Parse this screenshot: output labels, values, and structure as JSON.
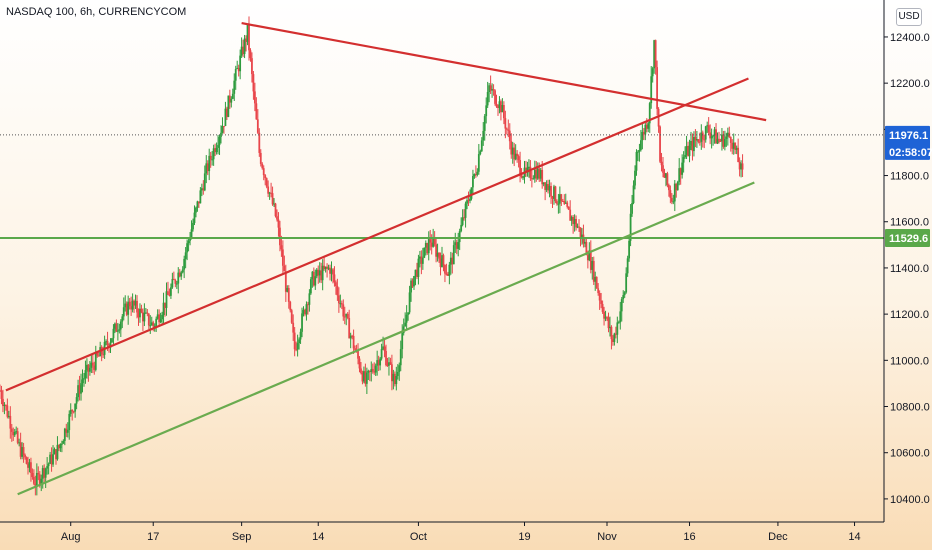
{
  "title": "NASDAQ 100, 6h, CURRENCYCOM",
  "currency_label": "USD",
  "colors": {
    "up": "#2e9b3e",
    "down": "#e8454a",
    "resistance_line": "#d32f2f",
    "support_line": "#6aab4f",
    "horizontal_line": "#5aa84a",
    "price_badge": "#1e63d6",
    "level_badge": "#5aa84a",
    "axis_text": "#131722"
  },
  "chart_data": {
    "type": "candlestick",
    "ylim": [
      10300,
      12560
    ],
    "y_ticks": [
      10400,
      10600,
      10800,
      11000,
      11200,
      11400,
      11600,
      11800,
      12000,
      12200,
      12400
    ],
    "y_tick_labels": [
      "10400.0",
      "10600.0",
      "10800.0",
      "11000.0",
      "11200.0",
      "11400.0",
      "11600.0",
      "11800.0",
      "12000.0",
      "12200.0",
      "12400.0"
    ],
    "x_range": [
      "2020-07-22",
      "2020-12-19"
    ],
    "x_ticks": [
      {
        "date": "2020-08-03",
        "label": "Aug"
      },
      {
        "date": "2020-08-17",
        "label": "17"
      },
      {
        "date": "2020-09-01",
        "label": "Sep"
      },
      {
        "date": "2020-09-14",
        "label": "14"
      },
      {
        "date": "2020-10-01",
        "label": "Oct"
      },
      {
        "date": "2020-10-19",
        "label": "19"
      },
      {
        "date": "2020-11-02",
        "label": "Nov"
      },
      {
        "date": "2020-11-16",
        "label": "16"
      },
      {
        "date": "2020-12-01",
        "label": "Dec"
      },
      {
        "date": "2020-12-14",
        "label": "14"
      }
    ],
    "anchors": [
      [
        "2020-07-22",
        10870
      ],
      [
        "2020-07-25",
        10640
      ],
      [
        "2020-07-28",
        10470
      ],
      [
        "2020-08-01",
        10620
      ],
      [
        "2020-08-05",
        10920
      ],
      [
        "2020-08-09",
        11060
      ],
      [
        "2020-08-13",
        11250
      ],
      [
        "2020-08-17",
        11150
      ],
      [
        "2020-08-19",
        11250
      ],
      [
        "2020-08-22",
        11420
      ],
      [
        "2020-08-26",
        11820
      ],
      [
        "2020-08-29",
        12040
      ],
      [
        "2020-09-02",
        12420
      ],
      [
        "2020-09-04",
        11900
      ],
      [
        "2020-09-07",
        11600
      ],
      [
        "2020-09-10",
        11050
      ],
      [
        "2020-09-13",
        11350
      ],
      [
        "2020-09-16",
        11400
      ],
      [
        "2020-09-19",
        11150
      ],
      [
        "2020-09-22",
        10900
      ],
      [
        "2020-09-25",
        11050
      ],
      [
        "2020-09-27",
        10900
      ],
      [
        "2020-09-30",
        11350
      ],
      [
        "2020-10-03",
        11520
      ],
      [
        "2020-10-06",
        11380
      ],
      [
        "2020-10-08",
        11550
      ],
      [
        "2020-10-11",
        11850
      ],
      [
        "2020-10-13",
        12180
      ],
      [
        "2020-10-15",
        12100
      ],
      [
        "2020-10-17",
        11900
      ],
      [
        "2020-10-19",
        11800
      ],
      [
        "2020-10-21",
        11820
      ],
      [
        "2020-10-24",
        11720
      ],
      [
        "2020-10-28",
        11580
      ],
      [
        "2020-10-30",
        11450
      ],
      [
        "2020-11-01",
        11250
      ],
      [
        "2020-11-03",
        11080
      ],
      [
        "2020-11-05",
        11300
      ],
      [
        "2020-11-07",
        11900
      ],
      [
        "2020-11-09",
        12050
      ],
      [
        "2020-11-10",
        12380
      ],
      [
        "2020-11-11",
        11850
      ],
      [
        "2020-11-13",
        11700
      ],
      [
        "2020-11-15",
        11880
      ],
      [
        "2020-11-17",
        11950
      ],
      [
        "2020-11-19",
        12000
      ],
      [
        "2020-11-21",
        11950
      ],
      [
        "2020-11-23",
        11970
      ],
      [
        "2020-11-25",
        11800
      ]
    ],
    "lines": [
      {
        "name": "resistance",
        "color": "#d32f2f",
        "points": [
          [
            "2020-09-01",
            12460
          ],
          [
            "2020-11-29",
            12040
          ]
        ]
      },
      {
        "name": "upper-trend",
        "color": "#d32f2f",
        "points": [
          [
            "2020-07-23",
            10870
          ],
          [
            "2020-11-26",
            12220
          ]
        ]
      },
      {
        "name": "support",
        "color": "#6aab4f",
        "points": [
          [
            "2020-07-25",
            10420
          ],
          [
            "2020-11-27",
            11770
          ]
        ]
      }
    ],
    "horizontal_level": {
      "value": 11529.6,
      "label": "11529.6",
      "color": "#5aa84a"
    },
    "last_price": {
      "value": 11976.1,
      "label": "11976.1",
      "countdown": "02:58:07",
      "color": "#1e63d6"
    }
  }
}
